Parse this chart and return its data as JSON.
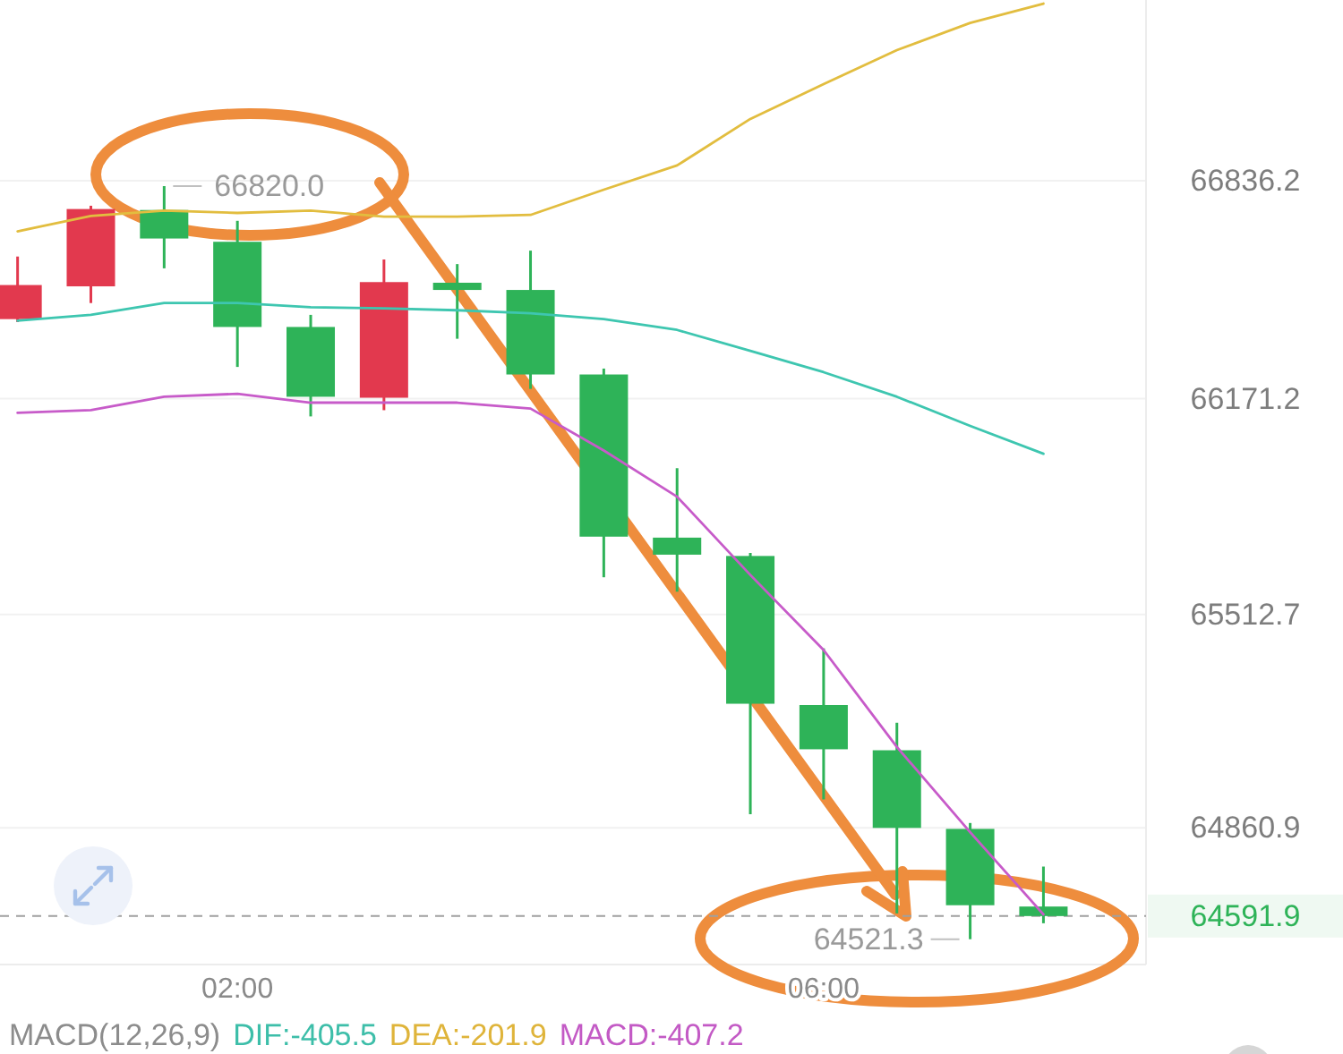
{
  "chart_data": {
    "type": "candlestick",
    "x": [
      0.5,
      1,
      1.5,
      2,
      2.5,
      3,
      3.5,
      4,
      4.5,
      5,
      5.5,
      6,
      6.5,
      7,
      7.5
    ],
    "xlim": [
      0.38,
      8.2
    ],
    "xticks": [
      {
        "value": 2,
        "label": "02:00"
      },
      {
        "value": 6,
        "label": "06:00"
      }
    ],
    "ylim": [
      64444,
      67388
    ],
    "yticks": [
      66836.2,
      66171.2,
      65512.7,
      64860.9
    ],
    "grid": "y",
    "series": [
      {
        "colors": [
          "#e2394e",
          "#e2394e",
          "#2eb358",
          "#2eb358",
          "#2eb358",
          "#e2394e",
          "#2eb358",
          "#2eb358",
          "#2eb358",
          "#2eb358",
          "#2eb358",
          "#2eb358",
          "#2eb358",
          "#2eb358",
          "#2eb358"
        ],
        "ohlc": [
          [
            66414,
            66605,
            66405,
            66518
          ],
          [
            66514,
            66760,
            66463,
            66750
          ],
          [
            66747,
            66820.0,
            66569,
            66660
          ],
          [
            66650,
            66714,
            66268,
            66390
          ],
          [
            66390,
            66427,
            66117,
            66177
          ],
          [
            66174,
            66596,
            66136,
            66527
          ],
          [
            66525,
            66582,
            66354,
            66503
          ],
          [
            66503,
            66623,
            66201,
            66245
          ],
          [
            66245,
            66263,
            65626,
            65750
          ],
          [
            65747,
            65959,
            65582,
            65695
          ],
          [
            65691,
            65700,
            64903,
            65240
          ],
          [
            65236,
            65409,
            64948,
            65101
          ],
          [
            65098,
            65182,
            64600,
            64861
          ],
          [
            64858,
            64876,
            64521.3,
            64625
          ],
          [
            64621,
            64743,
            64570,
            64591.9
          ]
        ]
      },
      {
        "type": "line",
        "color": "#e2bd3f",
        "values": [
          66682,
          66729,
          66745,
          66738,
          66745,
          66727,
          66727,
          66732,
          66809,
          66883,
          67025,
          67131,
          67235,
          67318,
          67377
        ]
      },
      {
        "type": "line",
        "color": "#3ec6b0",
        "values": [
          66409,
          66427,
          66463,
          66463,
          66450,
          66447,
          66441,
          66432,
          66414,
          66381,
          66317,
          66252,
          66177,
          66088,
          66003
        ]
      },
      {
        "type": "line",
        "color": "#c75bc9",
        "values": [
          66128,
          66136,
          66177,
          66186,
          66159,
          66159,
          66159,
          66141,
          66013,
          65872,
          65633,
          65404,
          65108,
          64848,
          64597
        ]
      }
    ],
    "ref_lines": [
      {
        "axis": "y",
        "value": 64591.9,
        "label": "64591.9",
        "color": "#a0a0a0",
        "line_style": "dashed"
      }
    ],
    "annotations": [
      {
        "text": "66820.0",
        "x": 1.5,
        "y": 66820.0
      },
      {
        "text": "64521.3",
        "x": 7,
        "y": 64521.3
      },
      "MACD(12,26,9)",
      "DIF:-405.5",
      "DEA:-201.9",
      "MACD:-407.2"
    ]
  }
}
